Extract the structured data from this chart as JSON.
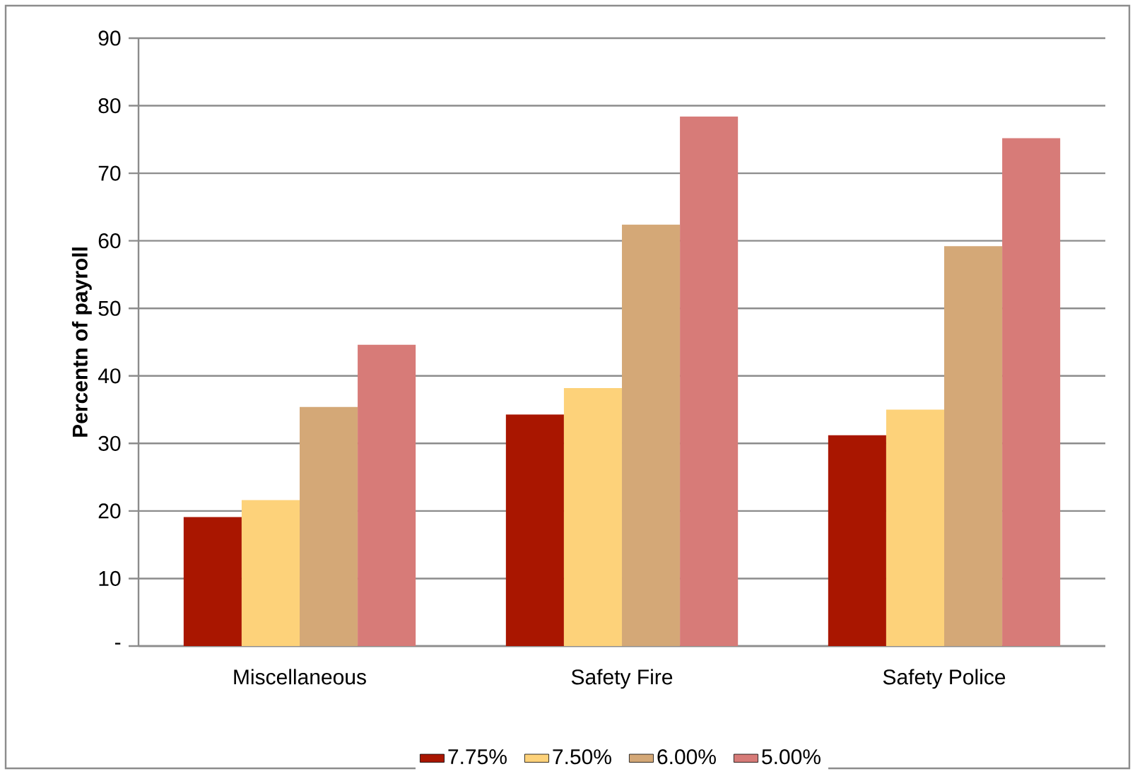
{
  "chart_data": {
    "type": "bar",
    "ylabel": "Percentn of payroll",
    "categories": [
      "Miscellaneous",
      "Safety Fire",
      "Safety Police"
    ],
    "series": [
      {
        "name": "7.75%",
        "color": "#a91600",
        "values": [
          19.1,
          34.3,
          31.2
        ]
      },
      {
        "name": "7.50%",
        "color": "#fdd27a",
        "values": [
          21.6,
          38.2,
          35.0
        ]
      },
      {
        "name": "6.00%",
        "color": "#d4a877",
        "values": [
          35.4,
          62.4,
          59.2
        ]
      },
      {
        "name": "5.00%",
        "color": "#d77b78",
        "values": [
          44.6,
          78.4,
          75.2
        ]
      }
    ],
    "ylim": [
      0,
      90
    ],
    "yticks": [
      {
        "value": 0,
        "label": "-"
      },
      10,
      20,
      30,
      40,
      50,
      60,
      70,
      80,
      90
    ],
    "grid": "y",
    "legend": "bottom"
  }
}
